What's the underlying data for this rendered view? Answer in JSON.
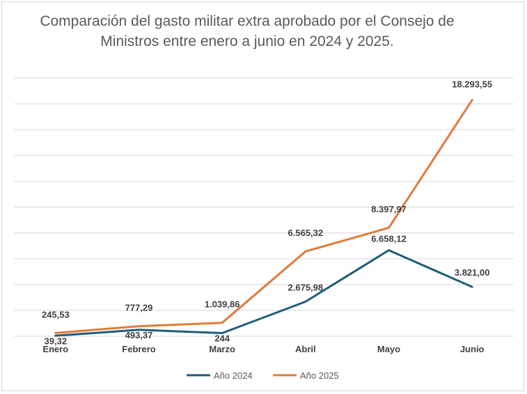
{
  "chart_data": {
    "type": "line",
    "title": "Comparación del gasto militar extra aprobado por el Consejo de Ministros entre enero a junio en 2024 y 2025.",
    "categories": [
      "Enero",
      "Febrero",
      "Marzo",
      "Abril",
      "Mayo",
      "Junio"
    ],
    "ylim": [
      0,
      20000
    ],
    "grid": true,
    "legend_position": "bottom",
    "series": [
      {
        "name": "Año 2024",
        "color": "#1f5c7a",
        "values": [
          39.32,
          493.37,
          244,
          2675.98,
          6658.12,
          3821.0
        ],
        "labels": [
          "39,32",
          "493,37",
          "244",
          "2.675,98",
          "6.658,12",
          "3.821,00"
        ]
      },
      {
        "name": "Año 2025",
        "color": "#e07b39",
        "values": [
          245.53,
          777.29,
          1039.86,
          6565.32,
          8397.97,
          18293.55
        ],
        "labels": [
          "245,53",
          "777,29",
          "1.039,86",
          "6.565,32",
          "8.397,97",
          "18.293,55"
        ]
      }
    ]
  }
}
